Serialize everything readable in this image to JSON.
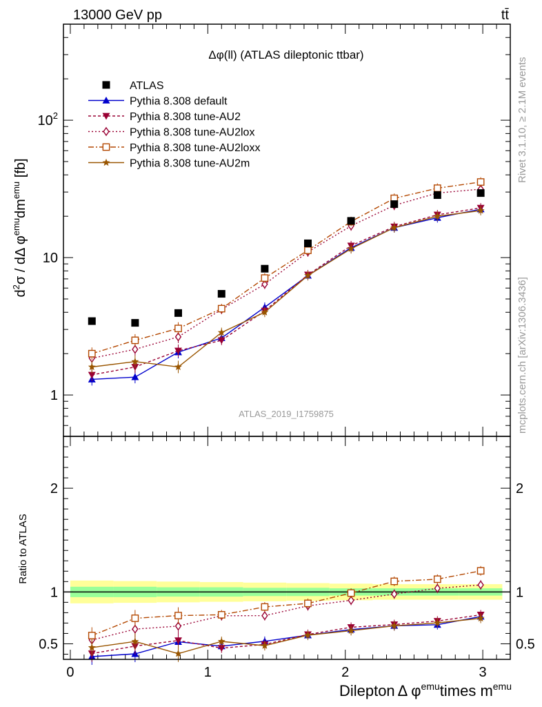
{
  "header": {
    "energy_label": "13000 GeV pp",
    "process_label": "tt̄"
  },
  "side_labels": {
    "rivet": "Rivet 3.1.10, ≥ 2.1M events",
    "mcplots": "mcplots.cern.ch [arXiv:1306.3436]"
  },
  "chart_data": {
    "type": "line",
    "title": "Δφ(ll) (ATLAS dileptonic ttbar)",
    "analysis_id": "ATLAS_2019_I1759875",
    "xlabel": "Dilepton Δ φ^emu times m^emu",
    "ylabel": "d²σ / dΔ φ^emu dm^emu [fb]",
    "ratio_ylabel": "Ratio to ATLAS",
    "yscale": "log",
    "xlim": [
      -0.05,
      3.2
    ],
    "ylim": [
      0.5,
      500
    ],
    "ratio_ylim": [
      0.35,
      2.5
    ],
    "x_ticks": [
      "0",
      "1",
      "2",
      "3"
    ],
    "y_ticks": [
      "1",
      "10",
      "10²"
    ],
    "ratio_ticks": [
      "0.5",
      "1",
      "2"
    ],
    "legend_position": "top-left",
    "x": [
      0.157,
      0.471,
      0.785,
      1.1,
      1.414,
      1.728,
      2.042,
      2.356,
      2.67,
      2.985
    ],
    "reference": {
      "name": "ATLAS",
      "color": "#000000",
      "values": [
        3.45,
        3.35,
        3.95,
        5.45,
        8.3,
        12.7,
        18.5,
        24.5,
        28.5,
        29.5
      ],
      "band_inner": [
        0.05,
        0.05,
        0.045,
        0.045,
        0.04,
        0.04,
        0.035,
        0.035,
        0.035,
        0.035
      ],
      "band_outer": [
        0.11,
        0.105,
        0.1,
        0.095,
        0.09,
        0.085,
        0.08,
        0.075,
        0.075,
        0.075
      ]
    },
    "series": [
      {
        "name": "Pythia 8.308 default",
        "color": "#0000cc",
        "dash": "",
        "marker": "triangle-up",
        "values": [
          1.3,
          1.35,
          2.05,
          2.6,
          4.35,
          7.4,
          11.8,
          16.5,
          19.5,
          22.5
        ]
      },
      {
        "name": "Pythia 8.308 tune-AU2",
        "color": "#990033",
        "dash": "4,3",
        "marker": "triangle-down",
        "values": [
          1.4,
          1.6,
          2.1,
          2.5,
          4.1,
          7.5,
          12.2,
          16.8,
          20.5,
          23.0
        ]
      },
      {
        "name": "Pythia 8.308 tune-AU2lox",
        "color": "#990033",
        "dash": "2,3",
        "marker": "diamond-open",
        "values": [
          1.85,
          2.15,
          2.65,
          4.2,
          6.4,
          11.0,
          17.0,
          24.0,
          29.5,
          31.5
        ]
      },
      {
        "name": "Pythia 8.308 tune-AU2loxx",
        "color": "#b34700",
        "dash": "8,3,2,3",
        "marker": "square-open",
        "values": [
          2.0,
          2.5,
          3.05,
          4.25,
          7.1,
          11.3,
          18.3,
          27.0,
          32.0,
          35.5
        ]
      },
      {
        "name": "Pythia 8.308 tune-AU2m",
        "color": "#995500",
        "dash": "",
        "marker": "star",
        "values": [
          1.6,
          1.75,
          1.6,
          2.85,
          4.0,
          7.4,
          11.6,
          16.5,
          20.0,
          22.0
        ]
      }
    ]
  }
}
